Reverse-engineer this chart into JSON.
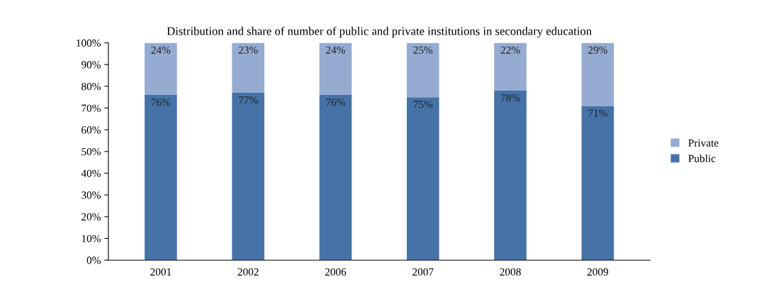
{
  "chart_data": {
    "type": "bar",
    "stacked": true,
    "title": "Distribution and share of number of public and private institutions in secondary education",
    "categories": [
      "2001",
      "2002",
      "2006",
      "2007",
      "2008",
      "2009"
    ],
    "series": [
      {
        "name": "Public",
        "color": "#4572a7",
        "values": [
          76,
          77,
          76,
          75,
          78,
          71
        ],
        "value_labels": [
          "76%",
          "77%",
          "76%",
          "75%",
          "78%",
          "71%"
        ]
      },
      {
        "name": "Private",
        "color": "#95abd1",
        "values": [
          24,
          23,
          24,
          25,
          22,
          29
        ],
        "value_labels": [
          "24%",
          "23%",
          "24%",
          "25%",
          "22%",
          "29%"
        ]
      }
    ],
    "ylim": [
      0,
      100
    ],
    "yticks": [
      {
        "value": 0,
        "label": "0%"
      },
      {
        "value": 10,
        "label": "10%"
      },
      {
        "value": 20,
        "label": "20%"
      },
      {
        "value": 30,
        "label": "30%"
      },
      {
        "value": 40,
        "label": "40%"
      },
      {
        "value": 50,
        "label": "50%"
      },
      {
        "value": 60,
        "label": "60%"
      },
      {
        "value": 70,
        "label": "70%"
      },
      {
        "value": 80,
        "label": "80%"
      },
      {
        "value": 90,
        "label": "90%"
      },
      {
        "value": 100,
        "label": "100%"
      }
    ],
    "grid": false,
    "legend": "right"
  }
}
